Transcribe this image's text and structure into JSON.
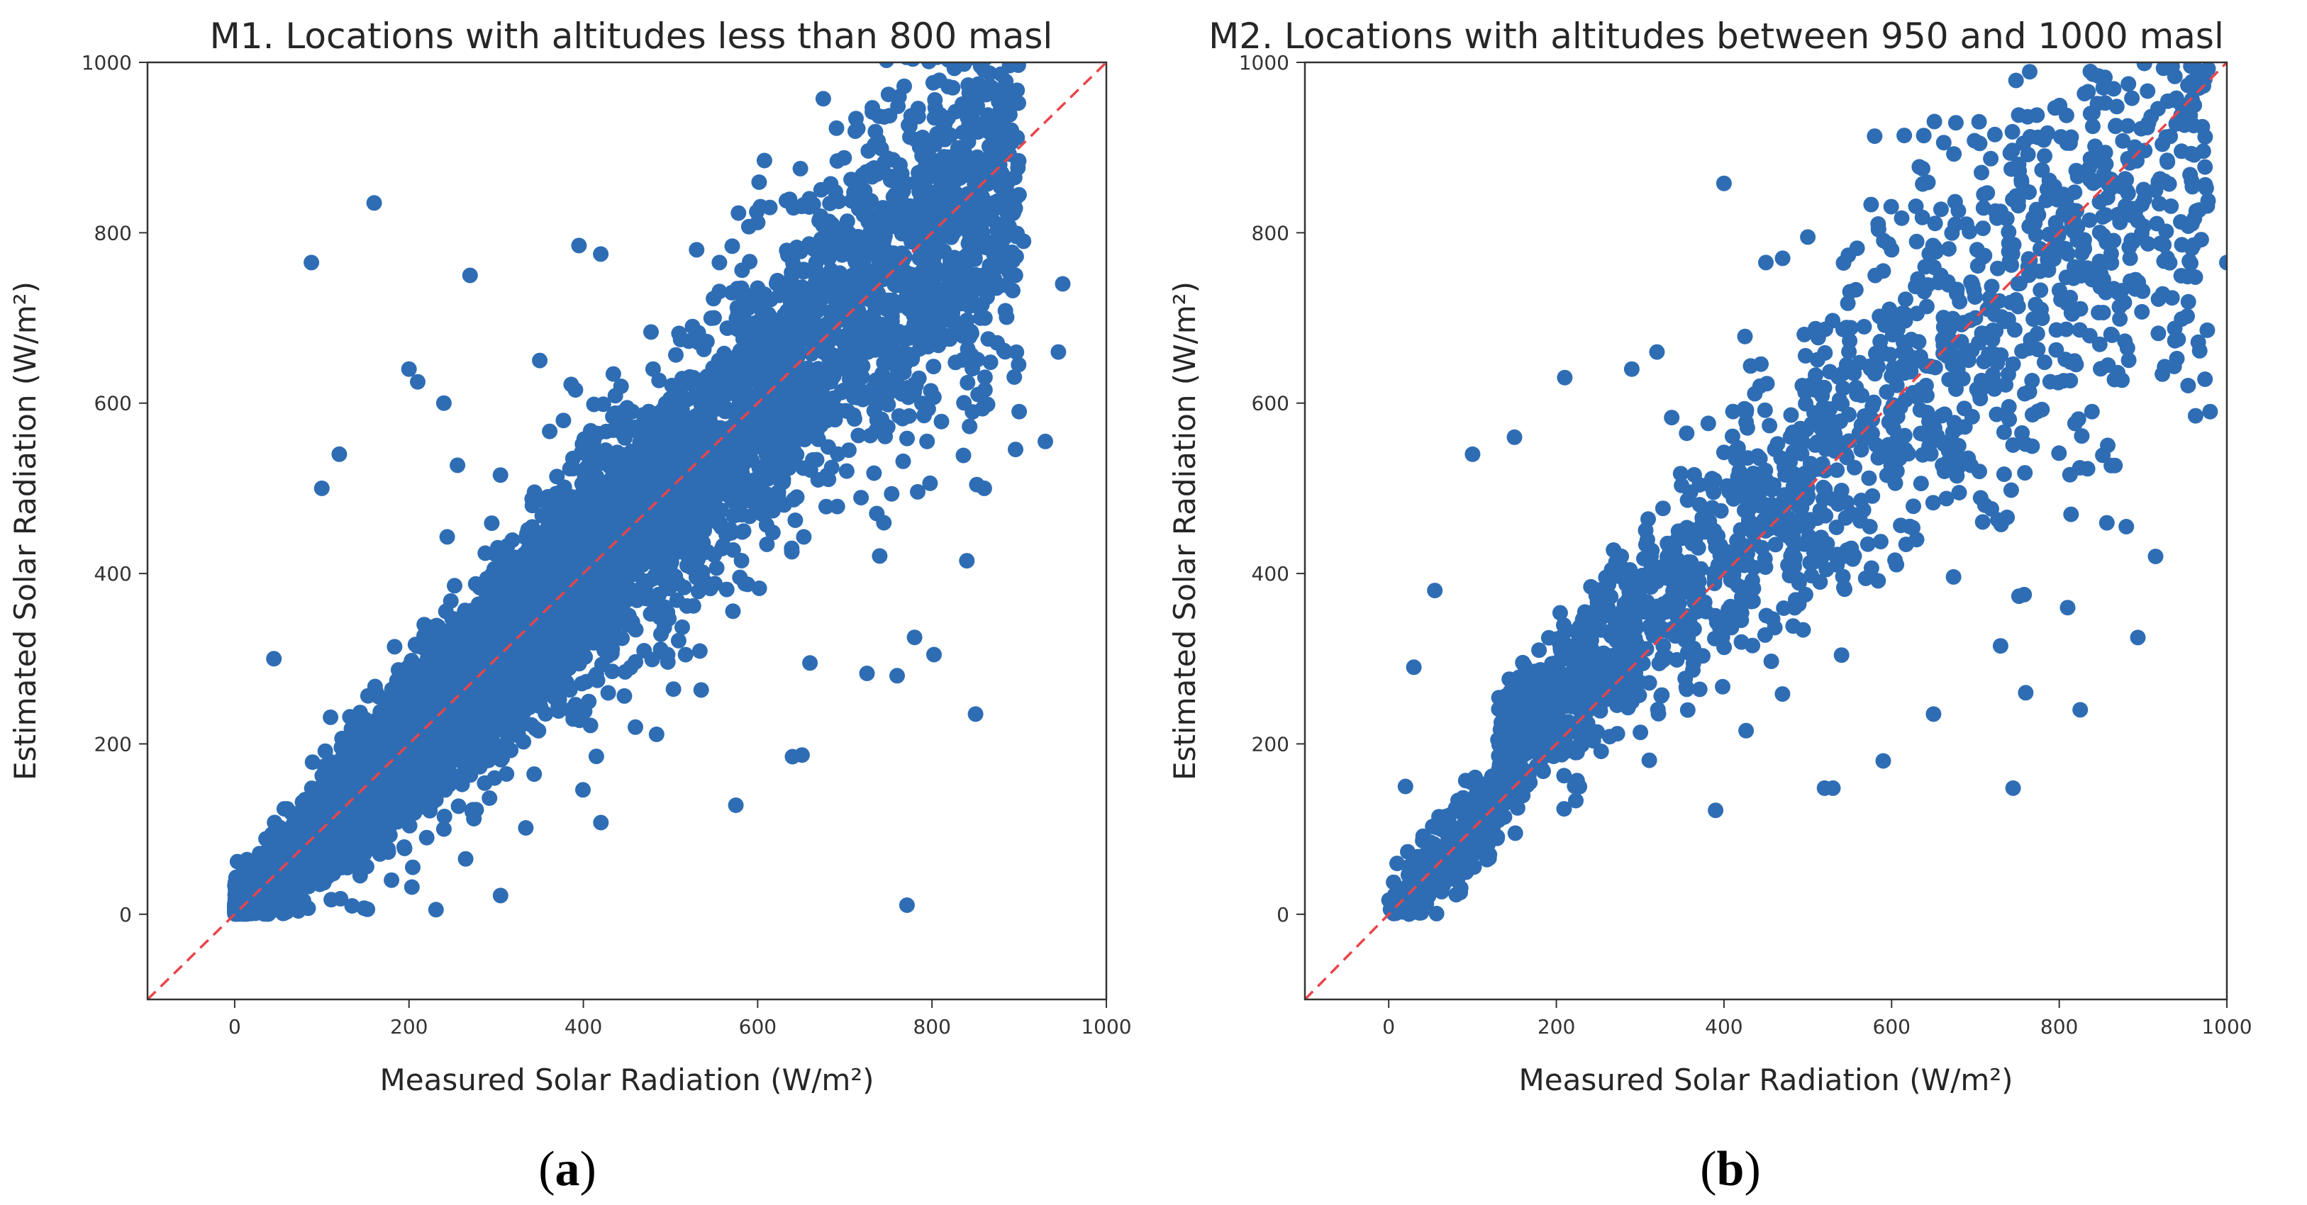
{
  "colors": {
    "points": "#2e6db4",
    "reference_line": "#e8454a",
    "axes": "#333333",
    "background": "#ffffff"
  },
  "chart_data": [
    {
      "type": "scatter",
      "panel_label": "a",
      "title": "M1. Locations with altitudes less than 800 masl",
      "xlabel": "Measured Solar Radiation (W/m²)",
      "ylabel": "Estimated Solar Radiation (W/m²)",
      "xlim": [
        -100,
        1000
      ],
      "ylim": [
        -100,
        1000
      ],
      "xticks": [
        0,
        200,
        400,
        600,
        800,
        1000
      ],
      "yticks": [
        0,
        200,
        400,
        600,
        800,
        1000
      ],
      "grid": false,
      "reference_line": {
        "style": "dashed",
        "from": [
          -100,
          -100
        ],
        "to": [
          1000,
          1000
        ],
        "label": "y = x"
      },
      "series": [
        {
          "name": "observations",
          "description": "dense cloud of several thousand points clustered along y = x",
          "approx_count": 7000,
          "x": [
            160,
            88,
            270,
            395,
            420,
            530,
            600,
            870,
            880,
            905,
            950,
            945,
            930,
            900,
            860,
            840,
            780,
            760,
            660,
            640,
            575,
            305,
            265,
            240,
            180,
            30,
            45,
            120,
            100,
            200,
            210,
            240,
            350,
            480,
            550,
            700,
            820,
            850
          ],
          "y": [
            835,
            765,
            750,
            785,
            775,
            780,
            812,
            880,
            870,
            790,
            740,
            660,
            555,
            590,
            500,
            415,
            325,
            280,
            295,
            185,
            128,
            22,
            65,
            100,
            40,
            5,
            300,
            540,
            500,
            640,
            625,
            600,
            650,
            640,
            700,
            720,
            760,
            235
          ]
        }
      ]
    },
    {
      "type": "scatter",
      "panel_label": "b",
      "title": "M2. Locations with altitudes between 950 and 1000 masl",
      "xlabel": "Measured Solar Radiation (W/m²)",
      "ylabel": "Estimated Solar Radiation (W/m²)",
      "xlim": [
        -100,
        1000
      ],
      "ylim": [
        -100,
        1000
      ],
      "xticks": [
        0,
        200,
        400,
        600,
        800,
        1000
      ],
      "yticks": [
        0,
        200,
        400,
        600,
        800,
        1000
      ],
      "grid": false,
      "reference_line": {
        "style": "dashed",
        "from": [
          -100,
          -100
        ],
        "to": [
          1000,
          1000
        ],
        "label": "y = x"
      },
      "series": [
        {
          "name": "observations",
          "description": "scattered cloud of about two thousand points along y = x, wider spread",
          "approx_count": 2000,
          "x": [
            400,
            710,
            730,
            805,
            915,
            1000,
            980,
            880,
            810,
            825,
            760,
            745,
            730,
            650,
            590,
            530,
            520,
            390,
            255,
            210,
            150,
            100,
            55,
            30,
            20,
            450,
            470,
            500,
            320,
            290,
            600,
            640,
            700
          ],
          "y": [
            858,
            845,
            825,
            845,
            850,
            765,
            590,
            455,
            360,
            240,
            260,
            148,
            315,
            235,
            180,
            148,
            148,
            122,
            270,
            630,
            560,
            540,
            380,
            290,
            150,
            765,
            770,
            795,
            660,
            640,
            780,
            760,
            700
          ]
        }
      ]
    }
  ]
}
